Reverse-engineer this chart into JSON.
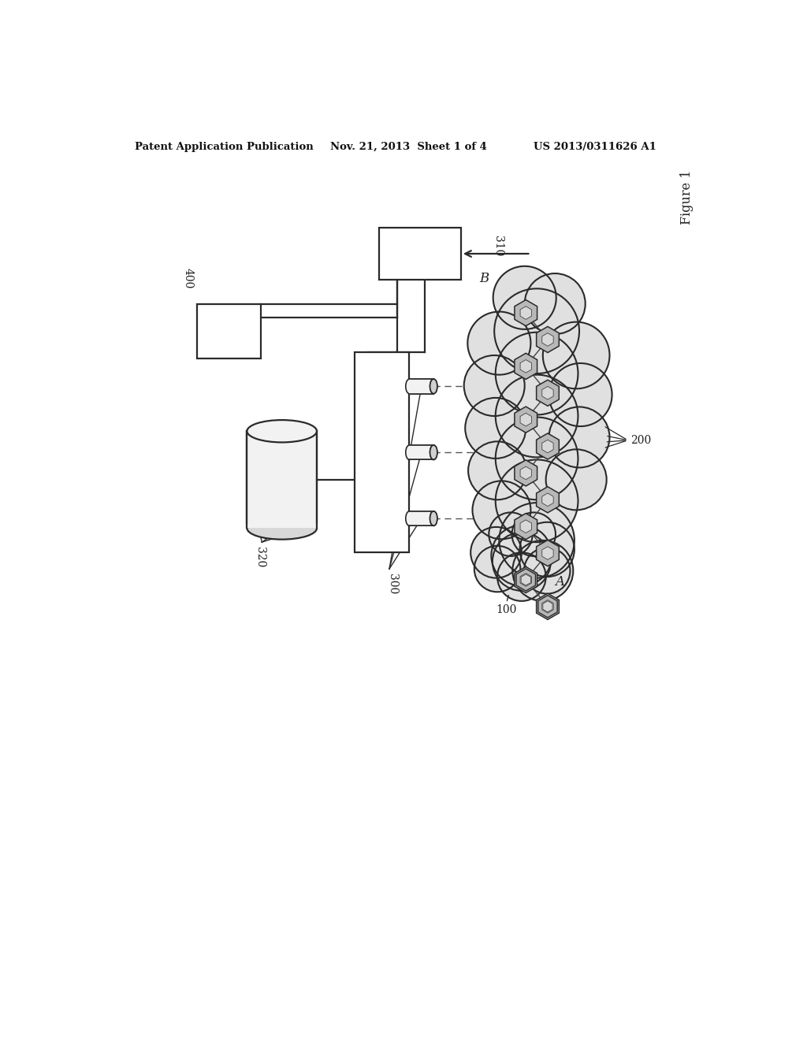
{
  "header_left": "Patent Application Publication",
  "header_mid": "Nov. 21, 2013  Sheet 1 of 4",
  "header_right": "US 2013/0311626 A1",
  "figure_label": "Figure 1",
  "bg_color": "#ffffff",
  "line_color": "#2a2a2a",
  "box_fill": "#ffffff",
  "box_edge": "#2a2a2a",
  "cloud_fill": "#e0e0e0",
  "cloud_edge": "#2a2a2a",
  "hex_fill": "#b8b8b8",
  "hex_fill_light": "#d8d8d8",
  "hex_edge": "#2a2a2a",
  "cylinder_fill": "#f2f2f2",
  "cylinder_fill_dark": "#d0d0d0",
  "cylinder_edge": "#2a2a2a",
  "dashed_color": "#555555",
  "label_310": "310",
  "label_400": "400",
  "label_320": "320",
  "label_300": "300",
  "label_200": "200",
  "label_100": "100",
  "label_A": "A",
  "label_B": "B"
}
